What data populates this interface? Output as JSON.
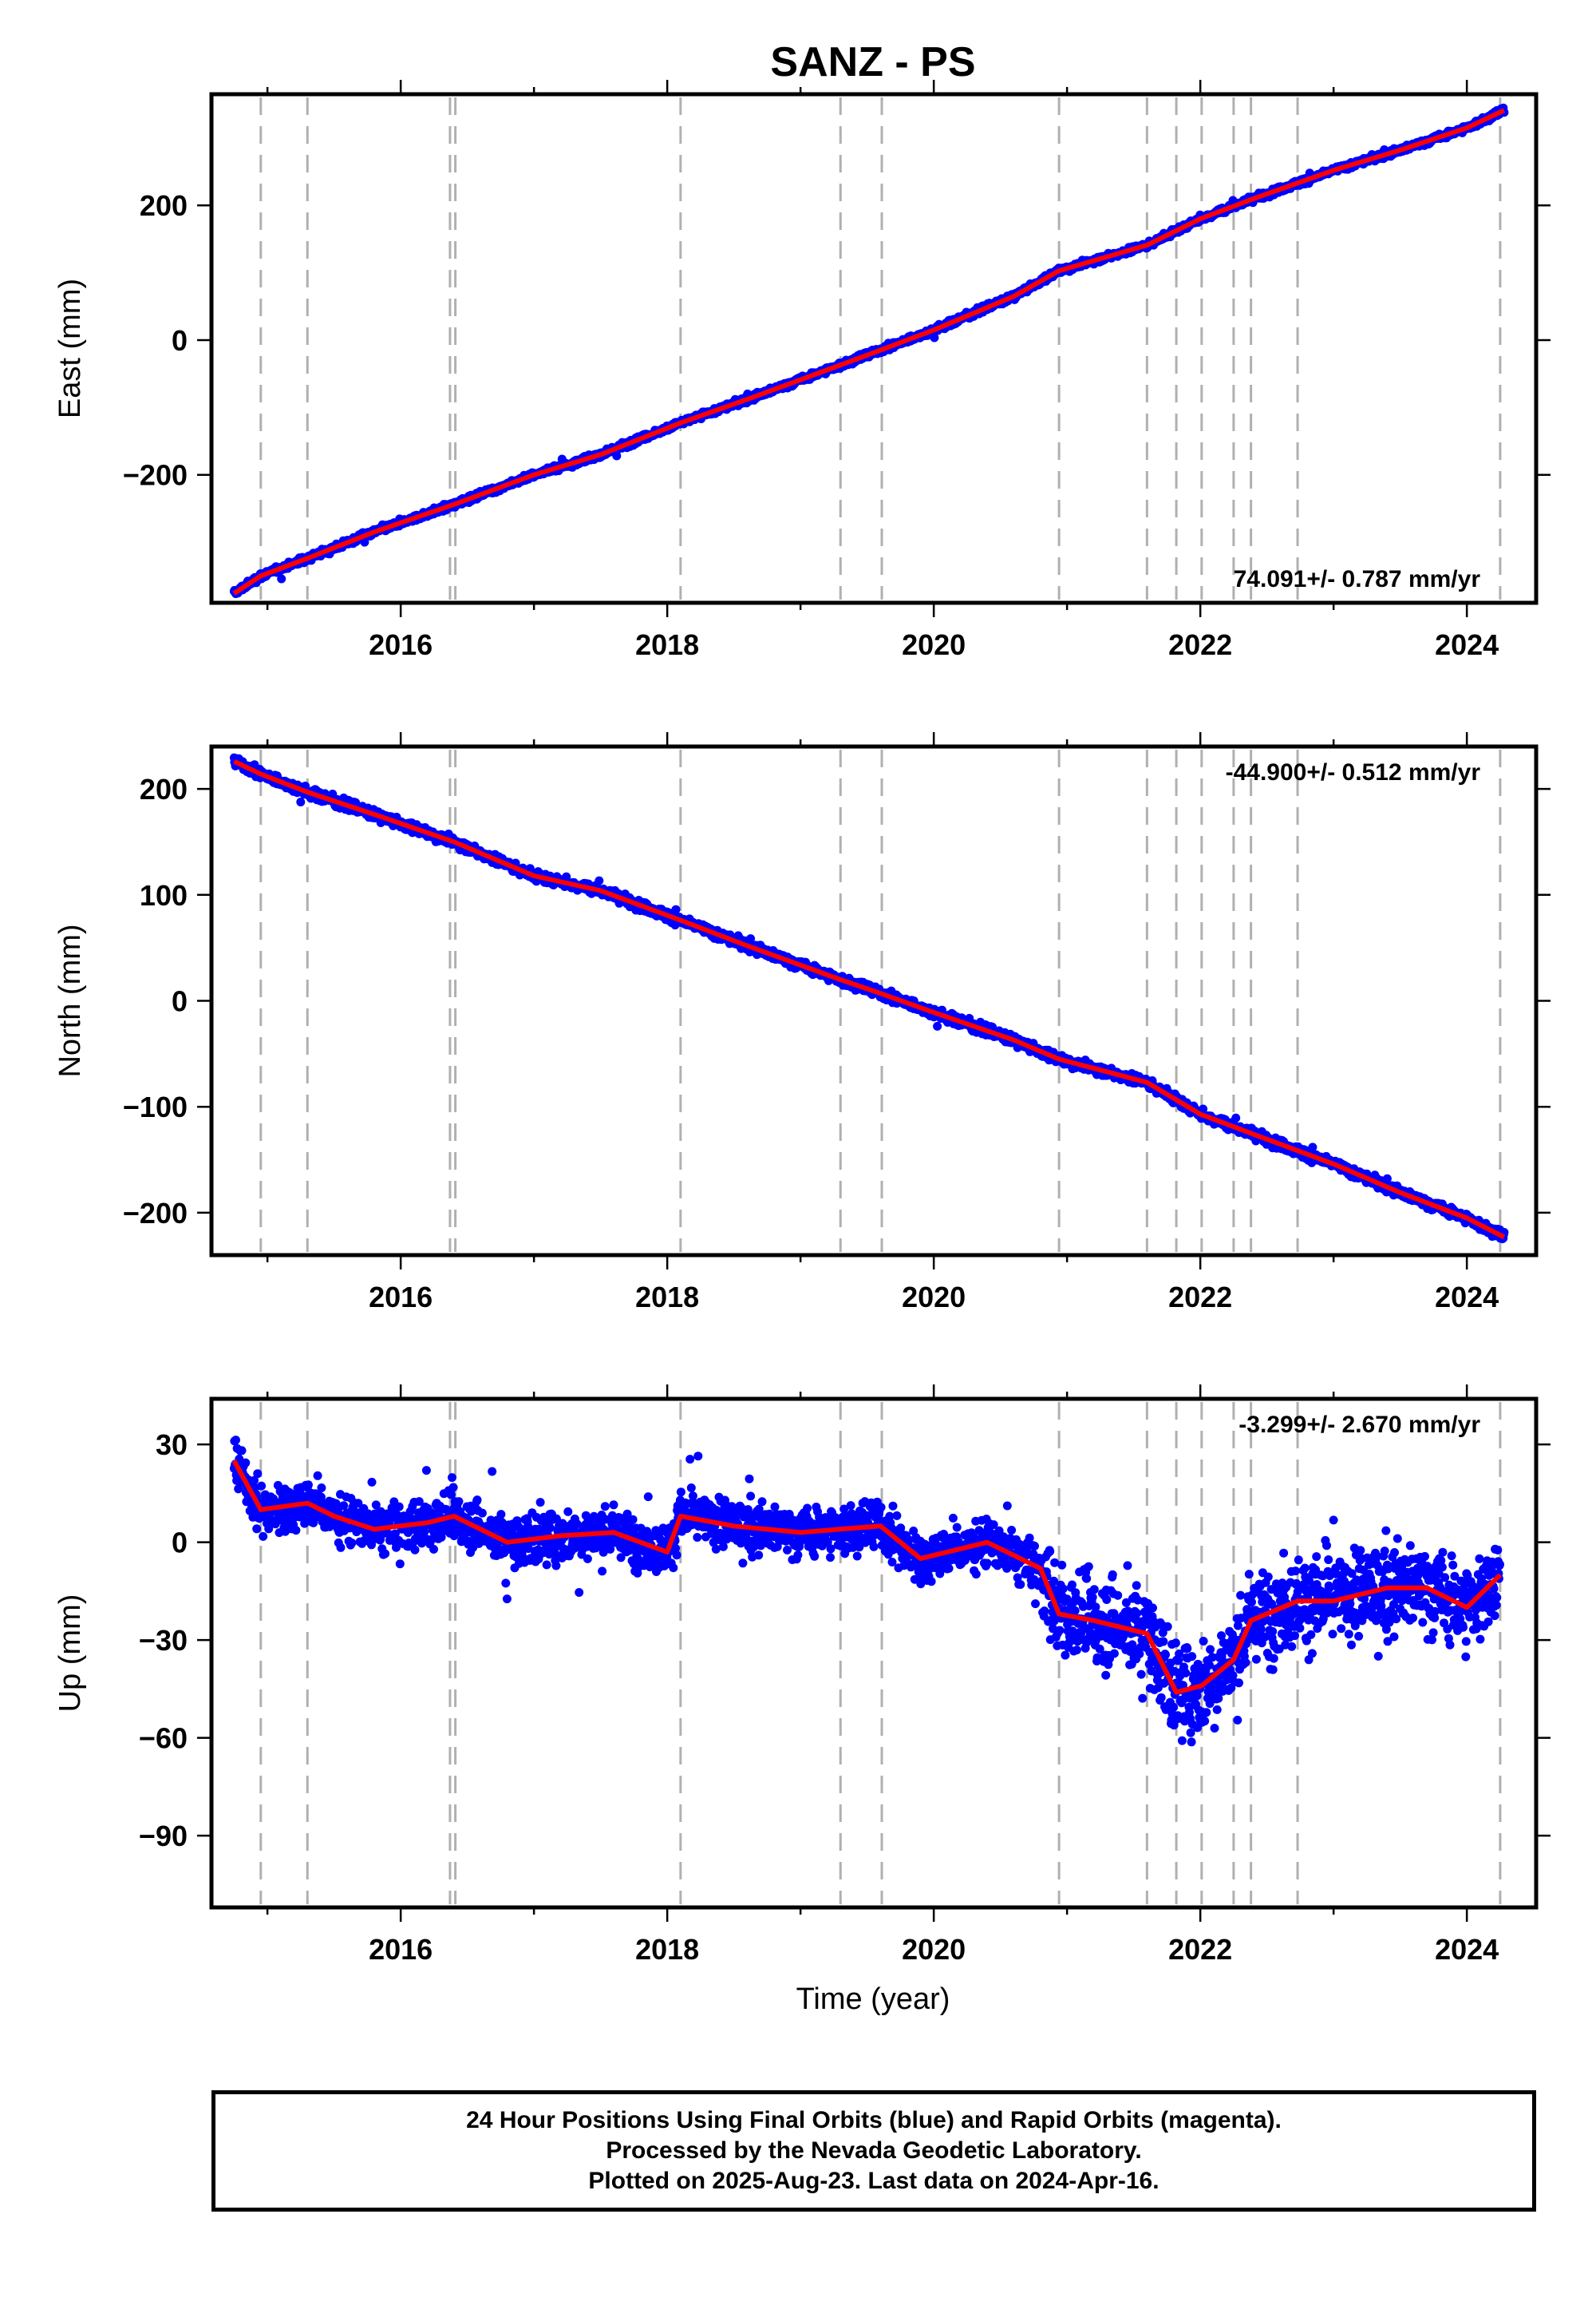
{
  "figure": {
    "title": "SANZ - PS",
    "xlabel": "Time (year)"
  },
  "caption": {
    "line1": "24 Hour Positions Using Final Orbits (blue) and Rapid Orbits (magenta).",
    "line2": "Processed by the Nevada Geodetic Laboratory.",
    "line3": "Plotted on 2025-Aug-23. Last data on 2024-Apr-16."
  },
  "colors": {
    "data_points": "#0000ff",
    "model_fit": "#ff0000",
    "event_lines": "#b0b0b0",
    "frame": "#000000"
  },
  "event_lines_years": [
    14.95,
    15.3,
    16.37,
    16.41,
    18.1,
    19.3,
    19.61,
    20.94,
    21.6,
    21.82,
    22.01,
    22.25,
    22.38,
    22.73,
    24.25
  ],
  "chart_data": [
    {
      "type": "scatter",
      "name": "east",
      "ylabel": "East (mm)",
      "xlim": [
        14.58,
        24.52
      ],
      "ylim": [
        -390,
        365
      ],
      "xticks": [
        16,
        18,
        20,
        22,
        24
      ],
      "xtick_labels": [
        "2016",
        "2018",
        "2020",
        "2022",
        "2024"
      ],
      "yticks": [
        -200,
        0,
        200
      ],
      "ytick_labels": [
        "−200",
        "0",
        "200"
      ],
      "rate_label": "74.091+/- 0.787 mm/yr",
      "rate_position": "bottom-right",
      "series": [
        {
          "x": [
            14.75,
            14.95,
            15.3,
            15.8,
            16.4,
            17.0,
            17.5,
            18.1,
            18.6,
            19.3,
            19.6,
            20.0,
            20.6,
            20.94,
            21.6,
            22.0,
            22.4,
            23.0,
            23.5,
            24.0,
            24.28
          ],
          "y": [
            -376,
            -350,
            -324,
            -285,
            -244,
            -200,
            -170,
            -123,
            -88,
            -37,
            -15,
            15,
            65,
            103,
            141,
            180,
            210,
            252,
            282,
            315,
            341
          ]
        }
      ]
    },
    {
      "type": "scatter",
      "name": "north",
      "ylabel": "North (mm)",
      "xlim": [
        14.58,
        24.52
      ],
      "ylim": [
        -240,
        240
      ],
      "xticks": [
        16,
        18,
        20,
        22,
        24
      ],
      "xtick_labels": [
        "2016",
        "2018",
        "2020",
        "2022",
        "2024"
      ],
      "yticks": [
        -200,
        -100,
        0,
        100,
        200
      ],
      "ytick_labels": [
        "−200",
        "−100",
        "0",
        "100",
        "200"
      ],
      "rate_label": "-44.900+/- 0.512 mm/yr",
      "rate_position": "top-right",
      "series": [
        {
          "x": [
            14.75,
            14.95,
            15.3,
            15.8,
            16.4,
            17.0,
            17.5,
            18.1,
            18.6,
            19.3,
            19.6,
            20.0,
            20.6,
            20.94,
            21.6,
            22.0,
            22.4,
            23.0,
            23.5,
            24.0,
            24.28
          ],
          "y": [
            226,
            214,
            197,
            176,
            150,
            118,
            104,
            76,
            52,
            20,
            7,
            -11,
            -37,
            -55,
            -77,
            -107,
            -126,
            -154,
            -181,
            -205,
            -223
          ]
        }
      ]
    },
    {
      "type": "scatter",
      "name": "up",
      "ylabel": "Up (mm)",
      "xlim": [
        14.58,
        24.52
      ],
      "ylim": [
        -112,
        44
      ],
      "xticks": [
        16,
        18,
        20,
        22,
        24
      ],
      "xtick_labels": [
        "2016",
        "2018",
        "2020",
        "2022",
        "2024"
      ],
      "yticks": [
        -90,
        -60,
        -30,
        0,
        30
      ],
      "ytick_labels": [
        "−90",
        "−60",
        "−30",
        "0",
        "30"
      ],
      "rate_label": "-3.299+/- 2.670 mm/yr",
      "rate_position": "top-right",
      "series": [
        {
          "x": [
            14.75,
            14.95,
            15.3,
            15.5,
            15.8,
            16.2,
            16.4,
            16.8,
            17.2,
            17.6,
            18.0,
            18.1,
            18.5,
            19.0,
            19.3,
            19.6,
            19.9,
            20.4,
            20.8,
            20.94,
            21.2,
            21.6,
            21.82,
            22.01,
            22.25,
            22.38,
            22.73,
            23.0,
            23.4,
            23.7,
            24.0,
            24.25
          ],
          "y": [
            25,
            10,
            12,
            8,
            4,
            6,
            8,
            0,
            2,
            3,
            -3,
            8,
            5,
            3,
            4,
            5,
            -5,
            0,
            -8,
            -22,
            -24,
            -28,
            -46,
            -44,
            -36,
            -24,
            -18,
            -18,
            -14,
            -14,
            -20,
            -10
          ]
        }
      ]
    }
  ]
}
